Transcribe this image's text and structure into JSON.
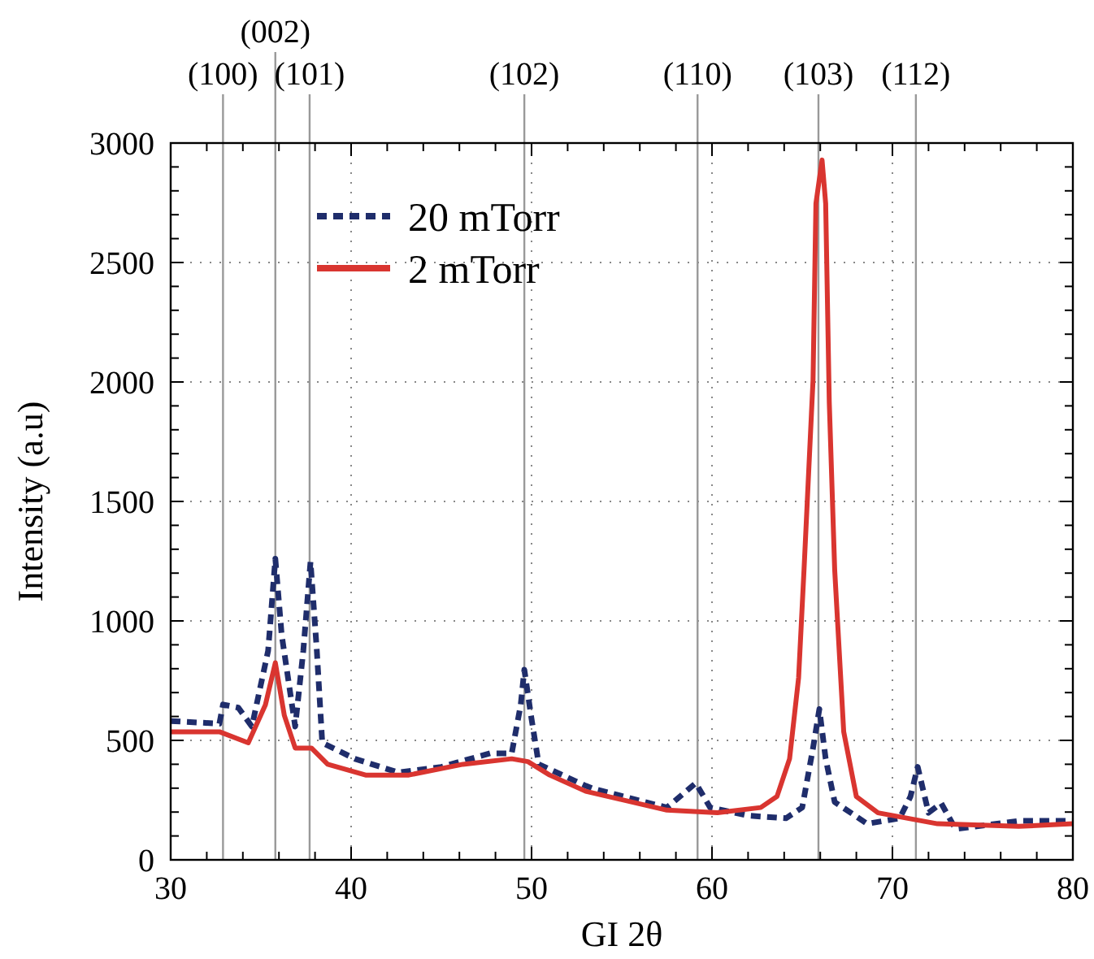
{
  "chart_data": {
    "type": "line",
    "xlabel": "GI 2θ",
    "ylabel": "Intensity (a.u)",
    "xlim": [
      30,
      80
    ],
    "ylim": [
      0,
      3000
    ],
    "xticks": [
      30,
      {
        "value": 32,
        "label": null
      },
      {
        "value": 34,
        "label": null
      },
      {
        "value": 36,
        "label": null
      },
      {
        "value": 38,
        "label": null
      },
      40,
      {
        "value": 42,
        "label": null
      },
      {
        "value": 44,
        "label": null
      },
      {
        "value": 46,
        "label": null
      },
      {
        "value": 48,
        "label": null
      },
      50,
      {
        "value": 52,
        "label": null
      },
      {
        "value": 54,
        "label": null
      },
      {
        "value": 56,
        "label": null
      },
      {
        "value": 58,
        "label": null
      },
      60,
      {
        "value": 62,
        "label": null
      },
      {
        "value": 64,
        "label": null
      },
      {
        "value": 66,
        "label": null
      },
      {
        "value": 68,
        "label": null
      },
      70,
      {
        "value": 72,
        "label": null
      },
      {
        "value": 74,
        "label": null
      },
      {
        "value": 76,
        "label": null
      },
      {
        "value": 78,
        "label": null
      },
      80
    ],
    "yticks": [
      0,
      {
        "value": 100,
        "label": null
      },
      {
        "value": 200,
        "label": null
      },
      {
        "value": 300,
        "label": null
      },
      {
        "value": 400,
        "label": null
      },
      500,
      {
        "value": 600,
        "label": null
      },
      {
        "value": 700,
        "label": null
      },
      {
        "value": 800,
        "label": null
      },
      {
        "value": 900,
        "label": null
      },
      1000,
      {
        "value": 1100,
        "label": null
      },
      {
        "value": 1200,
        "label": null
      },
      {
        "value": 1300,
        "label": null
      },
      {
        "value": 1400,
        "label": null
      },
      1500,
      {
        "value": 1600,
        "label": null
      },
      {
        "value": 1700,
        "label": null
      },
      {
        "value": 1800,
        "label": null
      },
      {
        "value": 1900,
        "label": null
      },
      2000,
      {
        "value": 2100,
        "label": null
      },
      {
        "value": 2200,
        "label": null
      },
      {
        "value": 2300,
        "label": null
      },
      {
        "value": 2400,
        "label": null
      },
      2500,
      {
        "value": 2600,
        "label": null
      },
      {
        "value": 2700,
        "label": null
      },
      {
        "value": 2800,
        "label": null
      },
      {
        "value": 2900,
        "label": null
      },
      3000
    ],
    "grid": true,
    "legend": "top left",
    "marker": "none",
    "series": [
      {
        "name": "20 mTorr",
        "color": "#1f2d6b",
        "line_style": "dashed",
        "x": [
          30,
          32.7,
          32.9,
          33.75,
          34.5,
          35.4,
          35.8,
          36.15,
          36.9,
          37.35,
          37.75,
          38.1,
          38.4,
          40.2,
          42.6,
          45,
          47.7,
          48.9,
          49.4,
          49.6,
          49.97,
          50.4,
          53,
          53.4,
          57.5,
          59.1,
          59.9,
          62,
          64.1,
          65,
          65.6,
          65.95,
          66.3,
          66.8,
          68.6,
          70.4,
          71,
          71.4,
          72,
          72.7,
          73.5,
          77,
          80
        ],
        "values": [
          581,
          570,
          650,
          637,
          558,
          875,
          1260,
          943,
          558,
          875,
          1248,
          875,
          490,
          423,
          366,
          389,
          446,
          446,
          649,
          796,
          604,
          400,
          310,
          298,
          219,
          321,
          219,
          185,
          174,
          219,
          468,
          631,
          423,
          242,
          151,
          174,
          265,
          389,
          197,
          237,
          129,
          163,
          163
        ]
      },
      {
        "name": "2 mTorr",
        "color": "#d93530",
        "line_style": "solid",
        "x": [
          30,
          32.7,
          34.3,
          35.25,
          35.8,
          36.3,
          36.9,
          37.8,
          38.7,
          40.8,
          43.2,
          46.2,
          48.9,
          49.8,
          51,
          53,
          57.5,
          60.3,
          62.7,
          63.6,
          64.3,
          64.8,
          65.1,
          65.6,
          65.76,
          66.1,
          66.3,
          66.5,
          66.8,
          67.3,
          68,
          69.2,
          72.5,
          77,
          80
        ],
        "values": [
          536,
          536,
          490,
          649,
          825,
          604,
          468,
          468,
          400,
          355,
          355,
          400,
          423,
          411,
          355,
          287,
          208,
          197,
          219,
          265,
          423,
          762,
          1214,
          2008,
          2747,
          2929,
          2747,
          1915,
          1214,
          536,
          265,
          197,
          151,
          140,
          151
        ]
      }
    ],
    "ref_lines": [
      {
        "axis": "x",
        "value": 32.9,
        "color": "#999999"
      },
      {
        "axis": "x",
        "value": 35.8,
        "color": "#999999"
      },
      {
        "axis": "x",
        "value": 37.7,
        "color": "#999999"
      },
      {
        "axis": "x",
        "value": 49.6,
        "color": "#999999"
      },
      {
        "axis": "x",
        "value": 59.2,
        "color": "#999999"
      },
      {
        "axis": "x",
        "value": 65.9,
        "color": "#999999"
      },
      {
        "axis": "x",
        "value": 71.3,
        "color": "#999999"
      }
    ],
    "annotations": [
      "(100)",
      "(002)",
      "(101)",
      "(102)",
      "(110)",
      "(103)",
      "(112)"
    ]
  }
}
